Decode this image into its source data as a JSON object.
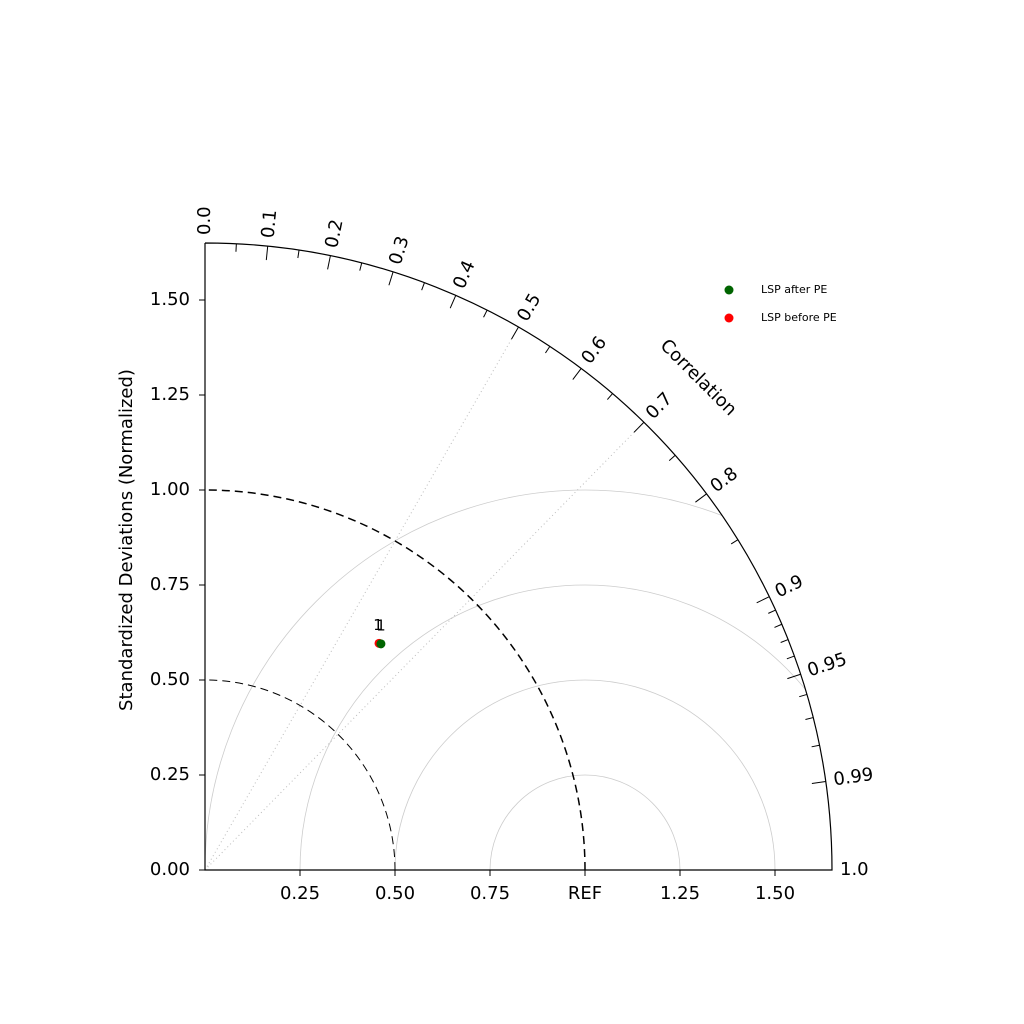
{
  "chart_data": {
    "type": "taylor",
    "ylabel": "Standardized Deviations (Normalized)",
    "corr_label": "Correlation",
    "max_std": 1.65,
    "yticks": [
      {
        "value": 0,
        "label": "0.00"
      },
      {
        "value": 0.25,
        "label": "0.25"
      },
      {
        "value": 0.5,
        "label": "0.50"
      },
      {
        "value": 0.75,
        "label": "0.75"
      },
      {
        "value": 1,
        "label": "1.00"
      },
      {
        "value": 1.25,
        "label": "1.25"
      },
      {
        "value": 1.5,
        "label": "1.50"
      }
    ],
    "xticks": [
      {
        "value": 0.25,
        "label": "0.25"
      },
      {
        "value": 0.5,
        "label": "0.50"
      },
      {
        "value": 0.75,
        "label": "0.75"
      },
      {
        "value": 1,
        "label": "REF"
      },
      {
        "value": 1.25,
        "label": "1.25"
      },
      {
        "value": 1.5,
        "label": "1.50"
      }
    ],
    "corr_ticks": [
      {
        "value": 0,
        "label": "0.0"
      },
      0.1,
      0.2,
      0.3,
      0.4,
      0.5,
      0.6,
      0.7,
      0.8,
      0.9,
      0.95,
      0.99,
      {
        "value": 1,
        "label": "1.0"
      }
    ],
    "corr_minor_ticks": [
      0.05,
      0.15,
      0.25,
      0.35,
      0.45,
      0.55,
      0.65,
      0.75,
      0.85,
      0.91,
      0.92,
      0.93,
      0.94,
      0.96,
      0.97,
      0.98
    ],
    "std_arcs": [
      0.5,
      1
    ],
    "rms_circles": [
      0.25,
      0.5,
      0.75,
      1
    ],
    "corr_lines": [
      0.5,
      0.7
    ],
    "series": [
      {
        "name": "LSP after PE",
        "color": "#006400",
        "label": "1",
        "std": 0.754,
        "corr": 0.614
      },
      {
        "name": "LSP before PE",
        "color": "#ff0000",
        "label": "1",
        "std": 0.752,
        "corr": 0.609
      }
    ]
  }
}
